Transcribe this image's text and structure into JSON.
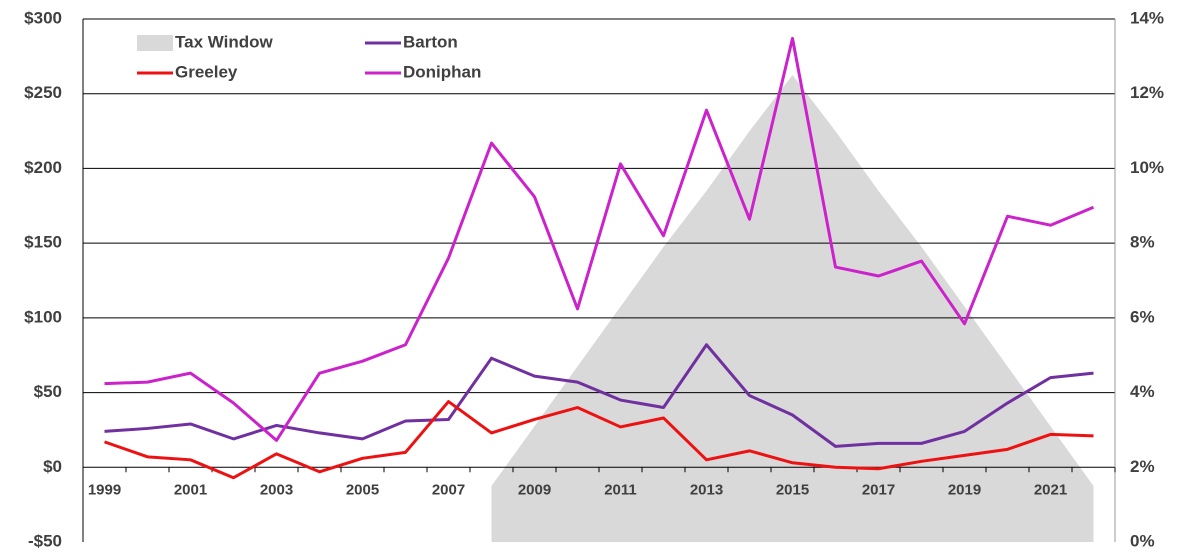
{
  "chart_data": {
    "type": "line",
    "categories": [
      "1999",
      null,
      "2001",
      null,
      "2003",
      null,
      "2005",
      null,
      "2007",
      null,
      "2009",
      null,
      "2011",
      null,
      "2013",
      null,
      "2015",
      null,
      "2017",
      null,
      "2019",
      null,
      "2021",
      null
    ],
    "series": [
      {
        "name": "Tax Window",
        "type": "area",
        "axis": "y2",
        "color": "#d9d9d9",
        "values": [
          null,
          null,
          null,
          null,
          null,
          null,
          null,
          null,
          null,
          1.5,
          3.1,
          4.7,
          6.3,
          7.9,
          9.4,
          11.0,
          12.5,
          11.0,
          9.4,
          7.9,
          6.3,
          4.7,
          3.1,
          1.5
        ]
      },
      {
        "name": "Barton",
        "color": "#7030a0",
        "values": [
          24,
          26,
          29,
          19,
          28,
          23,
          19,
          31,
          32,
          73,
          61,
          57,
          45,
          40,
          82,
          48,
          35,
          14,
          16,
          16,
          24,
          43,
          60,
          63
        ]
      },
      {
        "name": "Greeley",
        "color": "#ee1111",
        "values": [
          17,
          7,
          5,
          -7,
          9,
          -3,
          6,
          10,
          44,
          23,
          32,
          40,
          27,
          33,
          5,
          11,
          3,
          0,
          -1,
          4,
          8,
          12,
          22,
          21
        ]
      },
      {
        "name": "Doniphan",
        "color": "#cc22cc",
        "values": [
          56,
          57,
          63,
          43,
          18,
          63,
          71,
          82,
          140,
          217,
          181,
          106,
          203,
          155,
          239,
          166,
          287,
          134,
          128,
          138,
          96,
          168,
          162,
          174
        ]
      }
    ],
    "ylim": [
      -50,
      300
    ],
    "yticks": [
      {
        "value": -50,
        "label": "-$50"
      },
      {
        "value": 0,
        "label": "$0"
      },
      {
        "value": 50,
        "label": "$50"
      },
      {
        "value": 100,
        "label": "$100"
      },
      {
        "value": 150,
        "label": "$150"
      },
      {
        "value": 200,
        "label": "$200"
      },
      {
        "value": 250,
        "label": "$250"
      },
      {
        "value": 300,
        "label": "$300"
      }
    ],
    "y2lim": [
      0,
      14
    ],
    "y2ticks": [
      {
        "value": 0,
        "label": "0%"
      },
      {
        "value": 2,
        "label": "2%"
      },
      {
        "value": 4,
        "label": "4%"
      },
      {
        "value": 6,
        "label": "6%"
      },
      {
        "value": 8,
        "label": "8%"
      },
      {
        "value": 10,
        "label": "10%"
      },
      {
        "value": 12,
        "label": "12%"
      },
      {
        "value": 14,
        "label": "14%"
      }
    ],
    "grid": true,
    "legend": "upper left"
  }
}
